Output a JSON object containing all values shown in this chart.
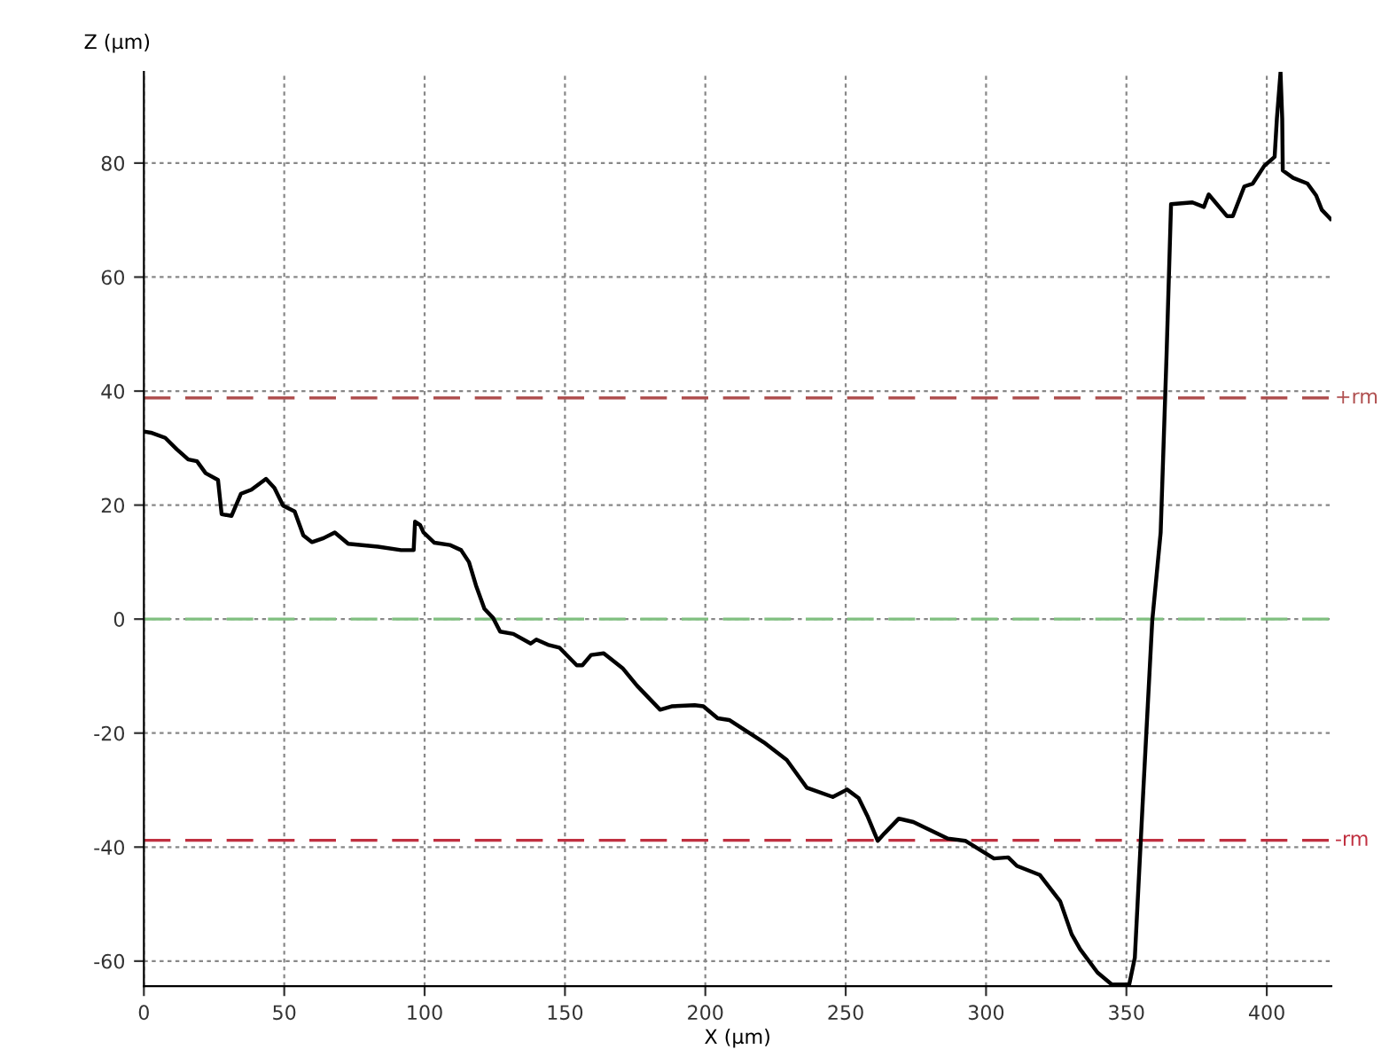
{
  "chart_data": {
    "type": "line",
    "xlabel": "X (µm)",
    "ylabel": "Z (µm)",
    "xlim": [
      0,
      423
    ],
    "ylim": [
      -64.4,
      96
    ],
    "xticks": [
      0,
      50,
      100,
      150,
      200,
      250,
      300,
      350,
      400
    ],
    "yticks": [
      -60,
      -40,
      -20,
      0,
      20,
      40,
      60,
      80
    ],
    "grid": true,
    "ref_lines": [
      {
        "axis": "y",
        "value": 38.8,
        "label": "+rm",
        "color": "#b05050",
        "line_style": "dashed"
      },
      {
        "axis": "y",
        "value": 0,
        "label": null,
        "color": "#80c080",
        "line_style": "dashed"
      },
      {
        "axis": "y",
        "value": -38.8,
        "label": "-rm",
        "color": "#c03040",
        "line_style": "dashed"
      }
    ],
    "series": [
      {
        "color": "#000000",
        "x": [
          0,
          2.5,
          7.6,
          11.7,
          15.8,
          18.9,
          22,
          26.4,
          27.7,
          31.2,
          34.6,
          38.3,
          43.5,
          46.5,
          49.6,
          53.7,
          56.8,
          59.9,
          64,
          68,
          72.8,
          83.4,
          91.6,
          96.1,
          96.6,
          98.4,
          99.6,
          103.5,
          109,
          113,
          115.8,
          118.3,
          121.3,
          124.4,
          126.9,
          131.6,
          137.8,
          139.8,
          143.9,
          148,
          154.2,
          156.2,
          159.3,
          163.8,
          170.5,
          175.7,
          183.9,
          188,
          196.2,
          199.3,
          204.4,
          208.5,
          220.8,
          229,
          236.2,
          245.4,
          250.5,
          254.6,
          257.7,
          261.4,
          263.8,
          268.9,
          274.1,
          286.4,
          292.6,
          302.8,
          307.9,
          311,
          319.2,
          326.4,
          330.5,
          333.5,
          339.7,
          344.8,
          351,
          353,
          356.1,
          359.2,
          362.2,
          364.3,
          365.9,
          373.5,
          377.6,
          379.3,
          385.8,
          387.9,
          392,
          395,
          399.1,
          402.8,
          403.6,
          404.9,
          405.5,
          405.7,
          409.4,
          414.5,
          417.6,
          419.6,
          422.7
        ],
        "values": [
          32.9,
          32.7,
          31.8,
          29.8,
          28,
          27.7,
          25.6,
          24.4,
          18.4,
          18.1,
          22,
          22.7,
          24.6,
          23,
          19.9,
          18.9,
          14.7,
          13.5,
          14.2,
          15.2,
          13.2,
          12.7,
          12.1,
          12.1,
          17.1,
          16.5,
          15.2,
          13.4,
          13,
          12.1,
          10,
          5.9,
          1.8,
          0.2,
          -2.2,
          -2.6,
          -4.3,
          -3.6,
          -4.5,
          -5,
          -8.1,
          -8.1,
          -6.3,
          -6,
          -8.6,
          -11.7,
          -15.9,
          -15.3,
          -15.1,
          -15.3,
          -17.4,
          -17.7,
          -21.6,
          -24.7,
          -29.6,
          -31.2,
          -29.9,
          -31.4,
          -34.5,
          -38.9,
          -37.6,
          -35,
          -35.6,
          -38.5,
          -38.9,
          -42,
          -41.8,
          -43.3,
          -44.9,
          -49.5,
          -55.3,
          -57.9,
          -62,
          -64.1,
          -64.1,
          -59.4,
          -29.3,
          -0.3,
          15.2,
          46.3,
          72.8,
          73.1,
          72.3,
          74.5,
          70.7,
          70.7,
          75.9,
          76.4,
          79.5,
          81.1,
          87.8,
          95.9,
          87.8,
          78.7,
          77.4,
          76.4,
          74.3,
          71.8,
          70.2
        ]
      }
    ]
  }
}
